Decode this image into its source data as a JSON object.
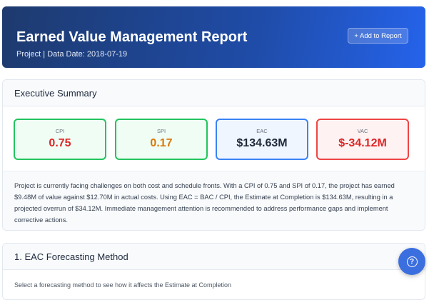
{
  "header": {
    "title": "Earned Value Management Report",
    "subtitle": "Project | Data Date: 2018-07-19",
    "add_button": "+ Add to Report"
  },
  "summary": {
    "title": "Executive Summary",
    "metrics": [
      {
        "label": "CPI",
        "value": "0.75",
        "border": "#22c55e",
        "bg": "#f0fdf4",
        "color": "#dc2626"
      },
      {
        "label": "SPI",
        "value": "0.17",
        "border": "#22c55e",
        "bg": "#f0fdf4",
        "color": "#d97706"
      },
      {
        "label": "EAC",
        "value": "$134.63M",
        "border": "#3b82f6",
        "bg": "#eff6ff",
        "color": "#1e293b"
      },
      {
        "label": "VAC",
        "value": "$-34.12M",
        "border": "#ef4444",
        "bg": "#fef2f2",
        "color": "#dc2626"
      }
    ],
    "text": "Project is currently facing challenges on both cost and schedule fronts. With a CPI of 0.75 and SPI of 0.17, the project has earned $9.48M of value against $12.70M in actual costs. Using EAC = BAC / CPI, the Estimate at Completion is $134.63M, resulting in a projected overrun of $34.12M. Immediate management attention is recommended to address performance gaps and implement corrective actions."
  },
  "eac_section": {
    "title": "1. EAC Forecasting Method",
    "description": "Select a forecasting method to see how it affects the Estimate at Completion"
  },
  "help": {
    "icon": "question-circle-icon",
    "glyph": "?"
  }
}
